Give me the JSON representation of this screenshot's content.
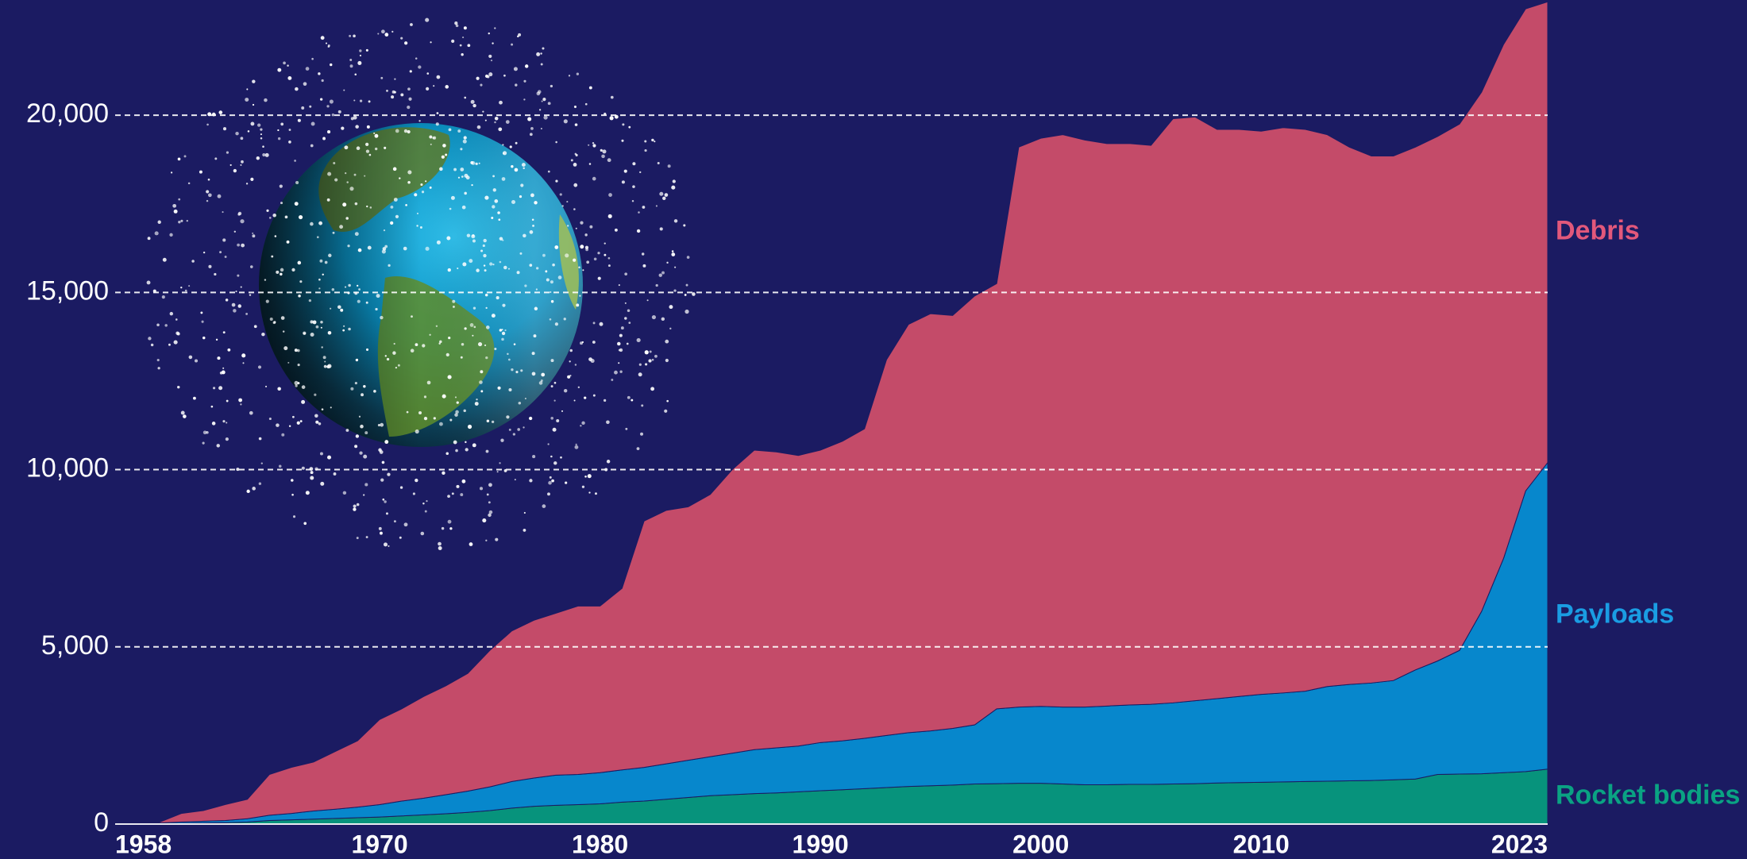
{
  "chart_data": {
    "type": "stacked-area",
    "x": [
      1958,
      1959,
      1960,
      1961,
      1962,
      1963,
      1964,
      1965,
      1966,
      1967,
      1968,
      1969,
      1970,
      1971,
      1972,
      1973,
      1974,
      1975,
      1976,
      1977,
      1978,
      1979,
      1980,
      1981,
      1982,
      1983,
      1984,
      1985,
      1986,
      1987,
      1988,
      1989,
      1990,
      1991,
      1992,
      1993,
      1994,
      1995,
      1996,
      1997,
      1998,
      1999,
      2000,
      2001,
      2002,
      2003,
      2004,
      2005,
      2006,
      2007,
      2008,
      2009,
      2010,
      2011,
      2012,
      2013,
      2014,
      2015,
      2016,
      2017,
      2018,
      2019,
      2020,
      2021,
      2022,
      2023
    ],
    "series": [
      {
        "name": "Rocket bodies",
        "color": "#07937c",
        "label_color": "#0aa383",
        "values": [
          5,
          5,
          10,
          20,
          30,
          40,
          60,
          100,
          120,
          140,
          160,
          180,
          200,
          230,
          260,
          290,
          330,
          380,
          450,
          500,
          530,
          550,
          570,
          620,
          650,
          700,
          750,
          800,
          830,
          860,
          880,
          910,
          940,
          970,
          1000,
          1030,
          1060,
          1080,
          1100,
          1130,
          1140,
          1150,
          1150,
          1130,
          1110,
          1110,
          1120,
          1120,
          1130,
          1140,
          1160,
          1170,
          1180,
          1190,
          1200,
          1210,
          1220,
          1230,
          1250,
          1270,
          1400,
          1410,
          1420,
          1450,
          1480,
          1550
        ]
      },
      {
        "name": "Payloads",
        "color": "#0787cc",
        "label_color": "#1a9de3",
        "values": [
          5,
          10,
          20,
          40,
          50,
          60,
          90,
          150,
          180,
          230,
          260,
          300,
          350,
          420,
          470,
          540,
          600,
          670,
          750,
          800,
          850,
          850,
          880,
          910,
          950,
          1000,
          1050,
          1100,
          1170,
          1240,
          1270,
          1290,
          1360,
          1380,
          1420,
          1470,
          1520,
          1550,
          1600,
          1670,
          2110,
          2150,
          2170,
          2170,
          2190,
          2220,
          2240,
          2260,
          2290,
          2340,
          2380,
          2430,
          2480,
          2510,
          2550,
          2670,
          2720,
          2750,
          2800,
          3080,
          3200,
          3490,
          4580,
          6050,
          7920,
          8650
        ]
      },
      {
        "name": "Debris",
        "color": "#c44b69",
        "label_color": "#e2587b",
        "values": [
          20,
          15,
          20,
          240,
          300,
          450,
          550,
          1150,
          1300,
          1380,
          1630,
          1870,
          2400,
          2600,
          2870,
          3070,
          3320,
          3850,
          4250,
          4450,
          4570,
          4750,
          4700,
          5120,
          6950,
          7150,
          7150,
          7400,
          8000,
          8450,
          8350,
          8200,
          8250,
          8450,
          8730,
          10600,
          11520,
          11770,
          11650,
          12100,
          12000,
          15800,
          16030,
          16150,
          16000,
          15870,
          15840,
          15770,
          16480,
          16470,
          16060,
          16000,
          15890,
          15950,
          15850,
          15570,
          15160,
          14870,
          14800,
          14750,
          14800,
          14850,
          14650,
          14500,
          13600,
          13000
        ]
      }
    ],
    "xlim": [
      1958,
      2023
    ],
    "xticks": [
      1958,
      1970,
      1980,
      1990,
      2000,
      2010,
      2023
    ],
    "ylim": [
      0,
      23250
    ],
    "yticks": [
      0,
      {
        "value": 5000,
        "label": "5,000"
      },
      {
        "value": 10000,
        "label": "10,000"
      },
      {
        "value": 15000,
        "label": "15,000"
      },
      {
        "value": 20000,
        "label": "20,000"
      }
    ],
    "grid": true,
    "legend": "right"
  }
}
